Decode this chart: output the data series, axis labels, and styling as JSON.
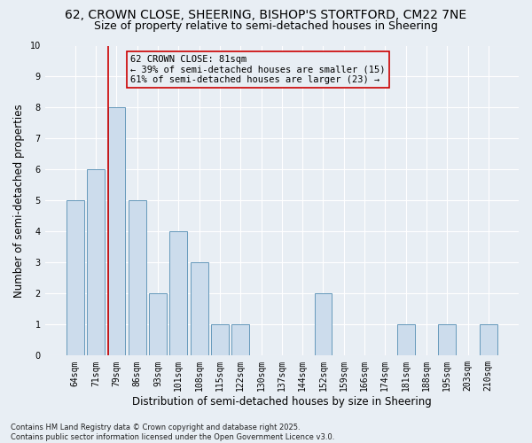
{
  "title_line1": "62, CROWN CLOSE, SHEERING, BISHOP'S STORTFORD, CM22 7NE",
  "title_line2": "Size of property relative to semi-detached houses in Sheering",
  "xlabel": "Distribution of semi-detached houses by size in Sheering",
  "ylabel": "Number of semi-detached properties",
  "categories": [
    "64sqm",
    "71sqm",
    "79sqm",
    "86sqm",
    "93sqm",
    "101sqm",
    "108sqm",
    "115sqm",
    "122sqm",
    "130sqm",
    "137sqm",
    "144sqm",
    "152sqm",
    "159sqm",
    "166sqm",
    "174sqm",
    "181sqm",
    "188sqm",
    "195sqm",
    "203sqm",
    "210sqm"
  ],
  "values": [
    5,
    6,
    8,
    5,
    2,
    4,
    3,
    1,
    1,
    0,
    0,
    0,
    2,
    0,
    0,
    0,
    1,
    0,
    1,
    0,
    1
  ],
  "bar_color": "#ccdcec",
  "bar_edge_color": "#6699bb",
  "highlight_index": 2,
  "highlight_line_color": "#cc0000",
  "annotation_line1": "62 CROWN CLOSE: 81sqm",
  "annotation_line2": "← 39% of semi-detached houses are smaller (15)",
  "annotation_line3": "61% of semi-detached houses are larger (23) →",
  "annotation_box_edge": "#cc0000",
  "ylim": [
    0,
    10
  ],
  "yticks": [
    0,
    1,
    2,
    3,
    4,
    5,
    6,
    7,
    8,
    9,
    10
  ],
  "background_color": "#e8eef4",
  "grid_color": "#ffffff",
  "footer": "Contains HM Land Registry data © Crown copyright and database right 2025.\nContains public sector information licensed under the Open Government Licence v3.0.",
  "title_fontsize": 10,
  "subtitle_fontsize": 9,
  "axis_label_fontsize": 8.5,
  "tick_fontsize": 7,
  "annotation_fontsize": 7.5,
  "footer_fontsize": 6
}
